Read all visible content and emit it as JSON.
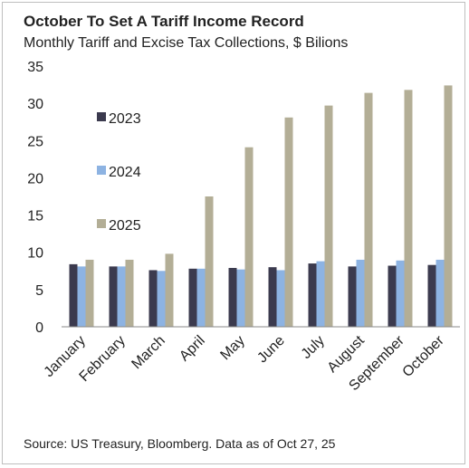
{
  "header": {
    "title": "October To Set A Tariff Income Record",
    "subtitle": "Monthly Tariff and Excise Tax Collections, $ Bilions"
  },
  "footer": {
    "source": "Source: US Treasury, Bloomberg. Data as of Oct 27, 25"
  },
  "chart_data": {
    "type": "bar",
    "title": "October To Set A Tariff Income Record",
    "subtitle": "Monthly Tariff and Excise Tax Collections, $ Bilions",
    "xlabel": "",
    "ylabel": "",
    "ylim": [
      0,
      35
    ],
    "yticks": [
      0,
      5,
      10,
      15,
      20,
      25,
      30,
      35
    ],
    "grid": false,
    "legend_placement": "top-left",
    "categories": [
      "January",
      "February",
      "March",
      "April",
      "May",
      "June",
      "July",
      "August",
      "September",
      "October"
    ],
    "series": [
      {
        "name": "2023",
        "color": "#3b3a4e",
        "values": [
          8.4,
          8.1,
          7.6,
          7.8,
          7.9,
          8.0,
          8.5,
          8.1,
          8.2,
          8.3
        ]
      },
      {
        "name": "2024",
        "color": "#8db3e2",
        "values": [
          8.1,
          8.1,
          7.5,
          7.8,
          7.7,
          7.6,
          8.8,
          9.0,
          8.9,
          9.0
        ]
      },
      {
        "name": "2025",
        "color": "#b3ae96",
        "values": [
          9.0,
          9.0,
          9.8,
          17.5,
          24.1,
          28.1,
          29.7,
          31.4,
          31.8,
          32.4
        ]
      }
    ]
  }
}
